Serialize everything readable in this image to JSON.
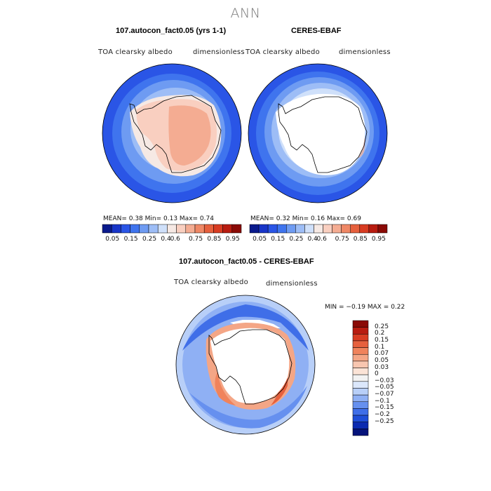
{
  "title": "ANN",
  "panels": [
    {
      "title": "107.autocon_fact0.05 (yrs 1-1)",
      "variable": "TOA clearsky albedo",
      "units": "dimensionless",
      "stats": "MEAN=    0.38   Min=    0.13   Max=    0.74"
    },
    {
      "title": "CERES-EBAF",
      "variable": "TOA clearsky albedo",
      "units": "dimensionless",
      "stats": "MEAN=    0.32   Min=    0.16   Max=    0.69"
    },
    {
      "title": "107.autocon_fact0.05 - CERES-EBAF",
      "variable": "TOA clearsky albedo",
      "units": "dimensionless",
      "stats": "MIN =  −0.19  MAX =   0.22"
    }
  ],
  "colorbar_top": {
    "colors": [
      "#0a1a8c",
      "#1835c8",
      "#2a55e6",
      "#3f74ee",
      "#6e9bf2",
      "#9dbdf6",
      "#cfe0fa",
      "#f6e9e4",
      "#f9cfc0",
      "#f4ac92",
      "#ef8866",
      "#e6603d",
      "#d83c22",
      "#b81c10",
      "#8a0a06"
    ],
    "labels": [
      "0.05",
      "0.15",
      "0.25",
      "0.4",
      "0.6",
      "0.75",
      "0.85",
      "0.95"
    ]
  },
  "colorbar_diff": {
    "colors": [
      "#8a0a06",
      "#b81c10",
      "#d83c22",
      "#e6603d",
      "#f0835c",
      "#f4a686",
      "#f8c6b0",
      "#fbe3d6",
      "#f2f2f2",
      "#dbe7fb",
      "#b8cff8",
      "#8fb0f4",
      "#6690ef",
      "#3f6ee8",
      "#1f4ed8",
      "#0b2ab0",
      "#05137a"
    ],
    "labels": [
      "0.25",
      "0.2",
      "0.15",
      "0.1",
      "0.07",
      "0.05",
      "0.03",
      "0",
      "−0.03",
      "−0.05",
      "−0.07",
      "−0.1",
      "−0.15",
      "−0.2",
      "−0.25"
    ]
  }
}
